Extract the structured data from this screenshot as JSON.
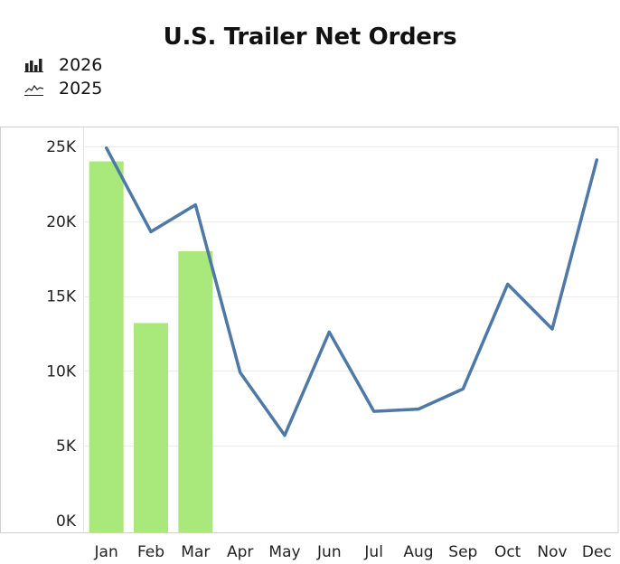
{
  "chart_data": {
    "type": "bar",
    "title": "U.S. Trailer Net Orders",
    "categories": [
      "Jan",
      "Feb",
      "Mar",
      "Apr",
      "May",
      "Jun",
      "Jul",
      "Aug",
      "Sep",
      "Oct",
      "Nov",
      "Dec"
    ],
    "series": [
      {
        "name": "2026",
        "type": "bar",
        "color": "#a9e97b",
        "values": [
          24000,
          13200,
          18000,
          null,
          null,
          null,
          null,
          null,
          null,
          null,
          null,
          null
        ]
      },
      {
        "name": "2025",
        "type": "line",
        "color": "#4e79a7",
        "values": [
          24900,
          19300,
          21100,
          9900,
          5700,
          12600,
          7300,
          7450,
          8800,
          15800,
          12800,
          24100
        ]
      }
    ],
    "y_ticks": [
      0,
      5000,
      10000,
      15000,
      20000,
      25000
    ],
    "y_tick_labels": [
      "0K",
      "5K",
      "10K",
      "15K",
      "20K",
      "25K"
    ],
    "ylim": [
      0,
      25000
    ],
    "legend_position": "top-left",
    "grid": true
  }
}
